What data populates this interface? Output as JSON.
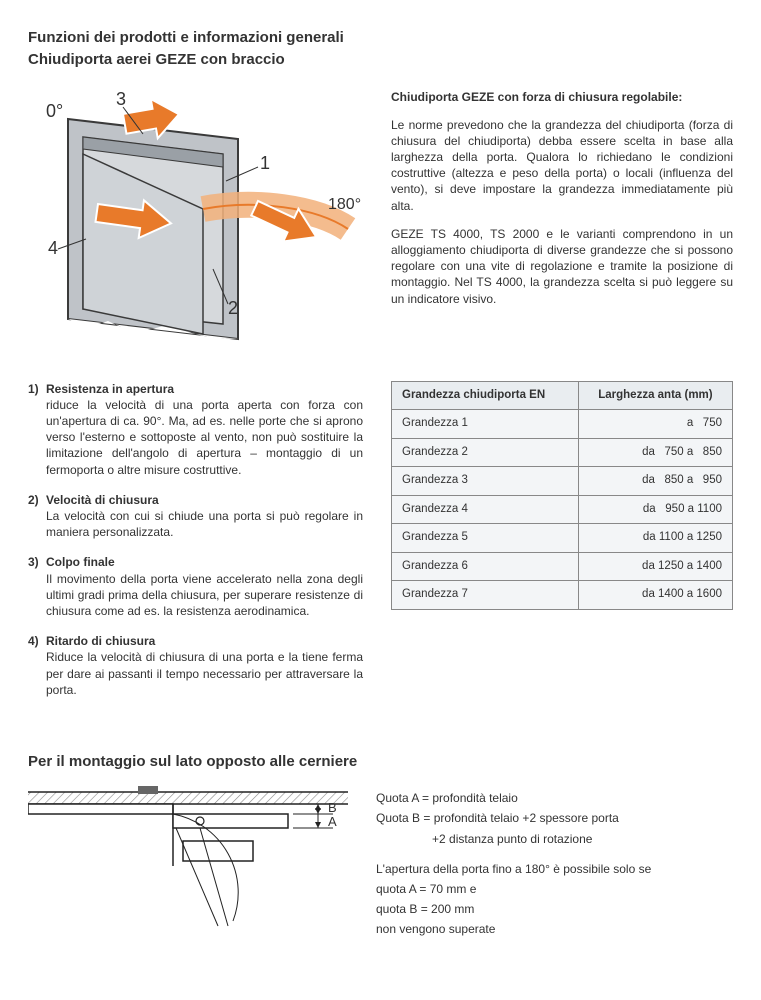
{
  "header": {
    "title": "Funzioni dei prodotti e informazioni generali",
    "subtitle": "Chiudiporta aerei GEZE con braccio"
  },
  "diagram": {
    "label_0deg": "0°",
    "label_180deg": "180°",
    "callout_1": "1",
    "callout_2": "2",
    "callout_3": "3",
    "callout_4": "4",
    "door_fill": "#bfc3c8",
    "door_stroke": "#3a3a3a",
    "arrow_fill": "#e87a2a",
    "arrow_stroke": "#ffffff",
    "arc_fill": "#f2b07a"
  },
  "right_text": {
    "heading": "Chiudiporta GEZE con forza di chiusura regolabile:",
    "p1": "Le norme prevedono che la grandezza del chiudiporta (forza di chiusura del chiudiporta) debba essere scelta in base alla larghezza della porta. Qualora lo richiedano le condizioni costruttive (altezza e peso della porta) o locali (influenza del vento), si deve impostare la grandezza immediatamente più alta.",
    "p2": "GEZE TS 4000, TS 2000 e le varianti comprendono in un alloggiamento chiudiporta di diverse grandezze che si possono regolare con una vite di regolazione e tramite la posizione di montaggio. Nel TS 4000, la grandezza scelta si può leggere su un indicatore visivo."
  },
  "functions": [
    {
      "n": "1)",
      "title": "Resistenza in apertura",
      "text": "riduce la velocità di una porta aperta con forza con un'apertura di ca. 90°. Ma, ad es. nelle porte che si aprono verso l'esterno e sottoposte al vento, non può sostituire la limitazione dell'angolo di apertura – montaggio di un fermoporta o altre misure costruttive."
    },
    {
      "n": "2)",
      "title": "Velocità di chiusura",
      "text": "La velocità con cui si chiude una porta si può regolare in maniera personalizzata."
    },
    {
      "n": "3)",
      "title": "Colpo finale",
      "text": "Il movimento della porta viene accelerato nella zona degli ultimi gradi prima della chiusura, per superare resistenze di chiusura come ad es. la resistenza aerodinamica."
    },
    {
      "n": "4)",
      "title": "Ritardo di chiusura",
      "text": "Riduce la velocità di chiusura di una porta e la tiene ferma per dare ai passanti il tempo necessario per attraversare la porta."
    }
  ],
  "table": {
    "col1": "Grandezza chiudiporta EN",
    "col2": "Larghezza anta (mm)",
    "rows": [
      {
        "a": "Grandezza 1",
        "b": "a   750"
      },
      {
        "a": "Grandezza 2",
        "b": "da   750 a   850"
      },
      {
        "a": "Grandezza 3",
        "b": "da   850 a   950"
      },
      {
        "a": "Grandezza 4",
        "b": "da   950 a 1100"
      },
      {
        "a": "Grandezza 5",
        "b": "da 1100 a 1250"
      },
      {
        "a": "Grandezza 6",
        "b": "da 1250 a 1400"
      },
      {
        "a": "Grandezza 7",
        "b": "da 1400 a 1600"
      }
    ],
    "header_bg": "#e9edf0",
    "row_bg": "#f3f5f7",
    "border": "#888888"
  },
  "section2": {
    "title": "Per il montaggio sul lato opposto alle cerniere",
    "label_A": "A",
    "label_B": "B",
    "note1": "Quota A = profondità telaio",
    "note2": "Quota B = profondità telaio +2 spessore porta",
    "note2b": "+2 distanza punto di rotazione",
    "note3": "L'apertura della porta fino a 180° è possibile solo se",
    "note4": "quota A = 70 mm e",
    "note5": "quota B = 200 mm",
    "note6": "non vengono superate",
    "hatch": "#888888",
    "line": "#222222",
    "fill": "#ffffff"
  }
}
